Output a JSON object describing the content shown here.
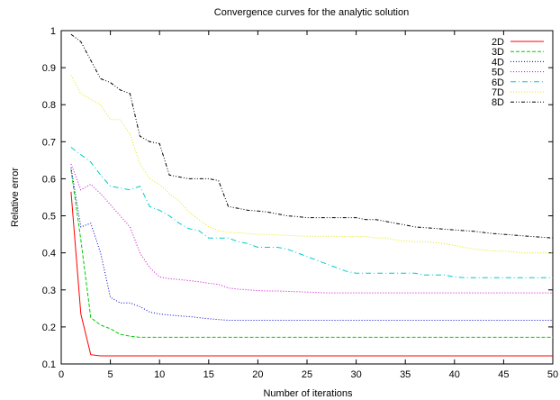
{
  "chart_data": {
    "type": "line",
    "title": "Convergence curves for the analytic solution",
    "xlabel": "Number of iterations",
    "ylabel": "Relative error",
    "xlim": [
      0,
      50
    ],
    "ylim": [
      0.1,
      1.0
    ],
    "x_ticks": [
      "0",
      "5",
      "10",
      "15",
      "20",
      "25",
      "30",
      "35",
      "40",
      "45",
      "50"
    ],
    "y_ticks": [
      "0.1",
      "0.2",
      "0.3",
      "0.4",
      "0.5",
      "0.6",
      "0.7",
      "0.8",
      "0.9",
      "1"
    ],
    "grid": false,
    "legend_position": "top-right",
    "x": [
      1,
      2,
      3,
      4,
      5,
      6,
      7,
      8,
      9,
      10,
      11,
      12,
      13,
      14,
      15,
      16,
      17,
      18,
      19,
      20,
      21,
      22,
      23,
      24,
      25,
      26,
      27,
      28,
      29,
      30,
      31,
      32,
      33,
      34,
      35,
      36,
      37,
      38,
      39,
      40,
      41,
      42,
      43,
      44,
      45,
      46,
      47,
      48,
      49,
      50
    ],
    "series": [
      {
        "name": "2D",
        "color": "#ff0000",
        "dash": "solid",
        "values": [
          0.565,
          0.235,
          0.125,
          0.122,
          0.122,
          0.122,
          0.122,
          0.122,
          0.122,
          0.122,
          0.122,
          0.122,
          0.122,
          0.122,
          0.122,
          0.122,
          0.122,
          0.122,
          0.122,
          0.122,
          0.122,
          0.122,
          0.122,
          0.122,
          0.122,
          0.122,
          0.122,
          0.122,
          0.122,
          0.122,
          0.122,
          0.122,
          0.122,
          0.122,
          0.122,
          0.122,
          0.122,
          0.122,
          0.122,
          0.122,
          0.122,
          0.122,
          0.122,
          0.122,
          0.122,
          0.122,
          0.122,
          0.122,
          0.122,
          0.122
        ]
      },
      {
        "name": "3D",
        "color": "#00cc00",
        "dash": "dashed",
        "values": [
          0.625,
          0.435,
          0.225,
          0.205,
          0.195,
          0.18,
          0.175,
          0.172,
          0.172,
          0.172,
          0.172,
          0.172,
          0.172,
          0.172,
          0.172,
          0.172,
          0.172,
          0.172,
          0.172,
          0.172,
          0.172,
          0.172,
          0.172,
          0.172,
          0.172,
          0.172,
          0.172,
          0.172,
          0.172,
          0.172,
          0.172,
          0.172,
          0.172,
          0.172,
          0.172,
          0.172,
          0.172,
          0.172,
          0.172,
          0.172,
          0.172,
          0.172,
          0.172,
          0.172,
          0.172,
          0.172,
          0.172,
          0.172,
          0.172,
          0.172
        ]
      },
      {
        "name": "4D",
        "color": "#0000cc",
        "dash": "dotted",
        "values": [
          0.63,
          0.47,
          0.48,
          0.4,
          0.28,
          0.265,
          0.265,
          0.255,
          0.24,
          0.235,
          0.232,
          0.23,
          0.228,
          0.225,
          0.222,
          0.22,
          0.218,
          0.218,
          0.218,
          0.218,
          0.218,
          0.218,
          0.218,
          0.218,
          0.218,
          0.218,
          0.218,
          0.218,
          0.218,
          0.218,
          0.218,
          0.218,
          0.218,
          0.218,
          0.218,
          0.218,
          0.218,
          0.218,
          0.218,
          0.218,
          0.218,
          0.218,
          0.218,
          0.218,
          0.218,
          0.218,
          0.218,
          0.218,
          0.218,
          0.218
        ]
      },
      {
        "name": "5D",
        "color": "#cc00cc",
        "dash": "dotted",
        "values": [
          0.64,
          0.57,
          0.585,
          0.56,
          0.53,
          0.5,
          0.47,
          0.4,
          0.36,
          0.335,
          0.33,
          0.328,
          0.325,
          0.322,
          0.318,
          0.315,
          0.305,
          0.302,
          0.3,
          0.298,
          0.297,
          0.297,
          0.296,
          0.295,
          0.294,
          0.293,
          0.292,
          0.292,
          0.292,
          0.292,
          0.292,
          0.292,
          0.292,
          0.292,
          0.292,
          0.292,
          0.292,
          0.292,
          0.292,
          0.292,
          0.292,
          0.292,
          0.292,
          0.292,
          0.292,
          0.292,
          0.292,
          0.292,
          0.292,
          0.292
        ]
      },
      {
        "name": "6D",
        "color": "#00cccc",
        "dash": "dashdot",
        "values": [
          0.685,
          0.665,
          0.645,
          0.61,
          0.58,
          0.575,
          0.57,
          0.58,
          0.525,
          0.515,
          0.5,
          0.48,
          0.465,
          0.46,
          0.44,
          0.44,
          0.44,
          0.43,
          0.425,
          0.415,
          0.415,
          0.415,
          0.41,
          0.4,
          0.39,
          0.38,
          0.37,
          0.36,
          0.35,
          0.345,
          0.345,
          0.345,
          0.345,
          0.345,
          0.345,
          0.345,
          0.34,
          0.34,
          0.34,
          0.335,
          0.333,
          0.333,
          0.333,
          0.333,
          0.333,
          0.333,
          0.333,
          0.333,
          0.333,
          0.333
        ]
      },
      {
        "name": "7D",
        "color": "#e6e600",
        "dash": "dotted",
        "values": [
          0.88,
          0.83,
          0.815,
          0.8,
          0.76,
          0.76,
          0.72,
          0.64,
          0.6,
          0.585,
          0.56,
          0.54,
          0.51,
          0.49,
          0.47,
          0.46,
          0.455,
          0.455,
          0.452,
          0.45,
          0.45,
          0.448,
          0.447,
          0.446,
          0.445,
          0.445,
          0.445,
          0.445,
          0.444,
          0.444,
          0.444,
          0.44,
          0.44,
          0.435,
          0.432,
          0.43,
          0.43,
          0.428,
          0.425,
          0.42,
          0.415,
          0.41,
          0.408,
          0.405,
          0.405,
          0.403,
          0.4,
          0.4,
          0.4,
          0.4
        ]
      },
      {
        "name": "8D",
        "color": "#000000",
        "dash": "dashdotdot",
        "values": [
          0.99,
          0.97,
          0.92,
          0.87,
          0.86,
          0.84,
          0.83,
          0.715,
          0.7,
          0.695,
          0.61,
          0.605,
          0.6,
          0.6,
          0.6,
          0.595,
          0.525,
          0.52,
          0.515,
          0.513,
          0.51,
          0.505,
          0.5,
          0.498,
          0.495,
          0.495,
          0.495,
          0.495,
          0.495,
          0.495,
          0.49,
          0.49,
          0.485,
          0.48,
          0.475,
          0.47,
          0.468,
          0.466,
          0.464,
          0.462,
          0.46,
          0.458,
          0.455,
          0.452,
          0.45,
          0.448,
          0.446,
          0.444,
          0.442,
          0.44
        ]
      }
    ]
  }
}
